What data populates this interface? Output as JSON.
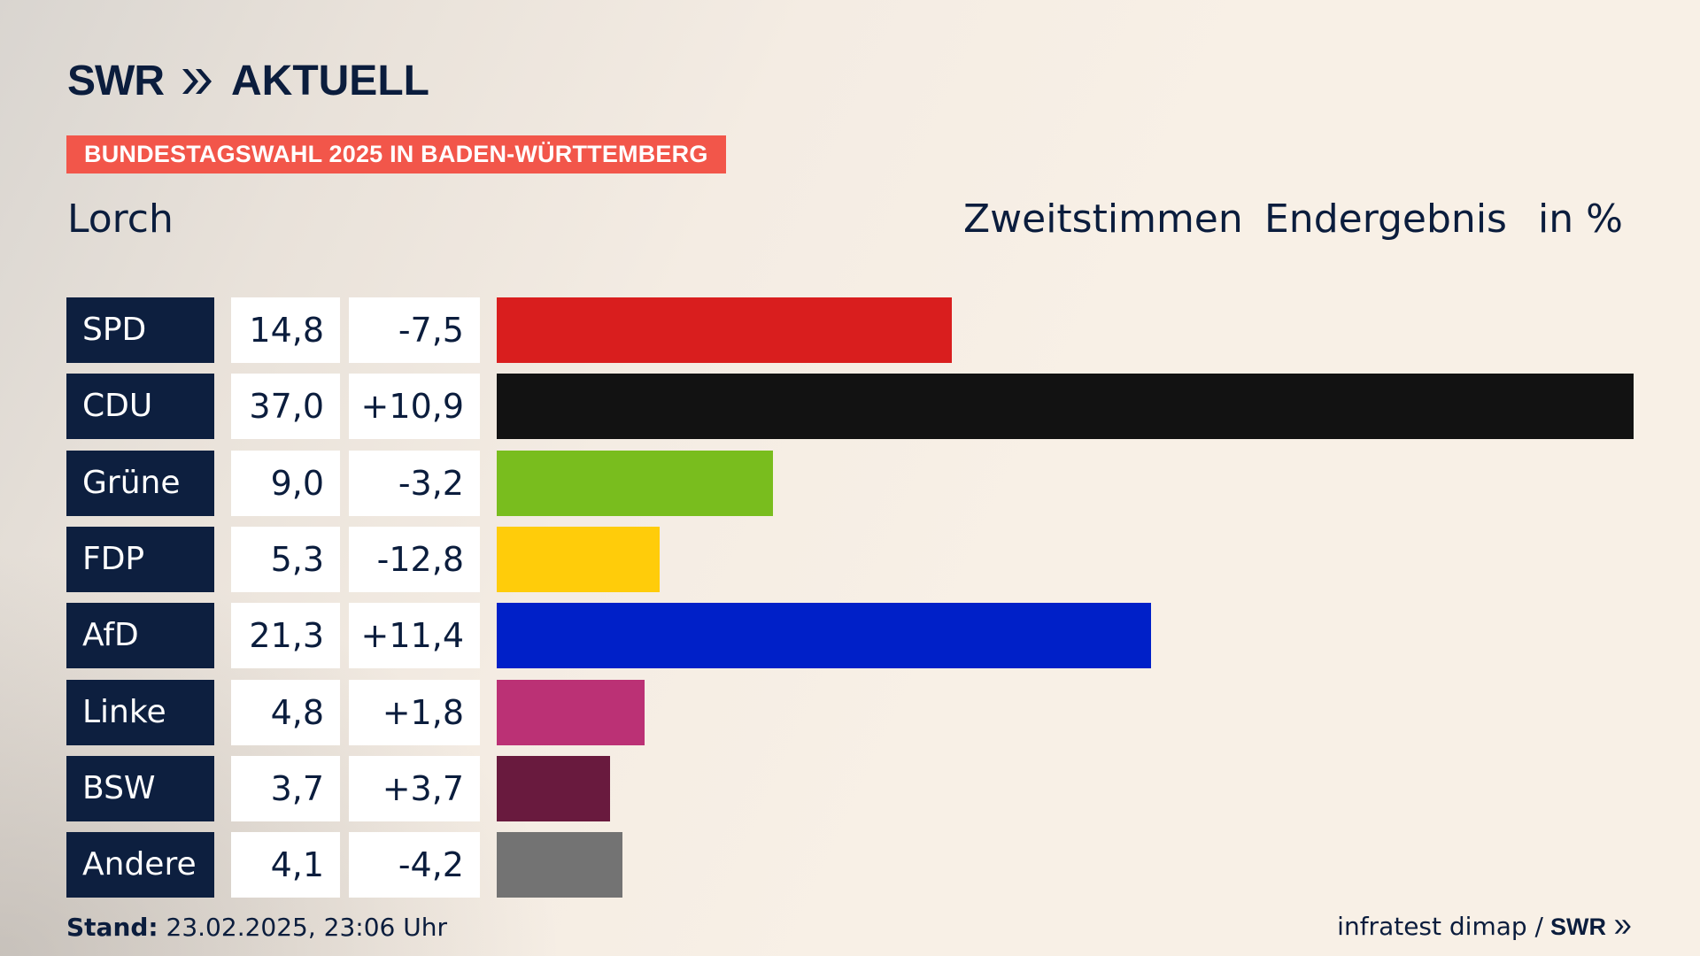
{
  "brand": {
    "swr": "SWR",
    "aktuell": "AKTUELL"
  },
  "banner": "BUNDESTAGSWAHL 2025 IN BADEN-WÜRTTEMBERG",
  "region": "Lorch",
  "header": {
    "zweitstimmen": "Zweitstimmen",
    "endergebnis": "Endergebnis",
    "unit": "in %"
  },
  "chart_data": {
    "type": "bar",
    "orientation": "horizontal",
    "categories": [
      "SPD",
      "CDU",
      "Grüne",
      "FDP",
      "AfD",
      "Linke",
      "BSW",
      "Andere"
    ],
    "values": [
      14.8,
      37.0,
      9.0,
      5.3,
      21.3,
      4.8,
      3.7,
      4.1
    ],
    "value_labels": [
      "14,8",
      "37,0",
      "9,0",
      "5,3",
      "21,3",
      "4,8",
      "3,7",
      "4,1"
    ],
    "diff_labels": [
      "-7,5",
      "+10,9",
      "-3,2",
      "-12,8",
      "+11,4",
      "+1,8",
      "+3,7",
      "-4,2"
    ],
    "colors": [
      "#d91e1e",
      "#121212",
      "#79bd1e",
      "#ffcc0a",
      "#0020c8",
      "#bb3175",
      "#691a3e",
      "#737373"
    ],
    "xlim": [
      0,
      37.0
    ]
  },
  "footer": {
    "stand_label": "Stand:",
    "stand_value": "23.02.2025, 23:06 Uhr",
    "source": "infratest dimap /",
    "source_brand": "SWR"
  }
}
